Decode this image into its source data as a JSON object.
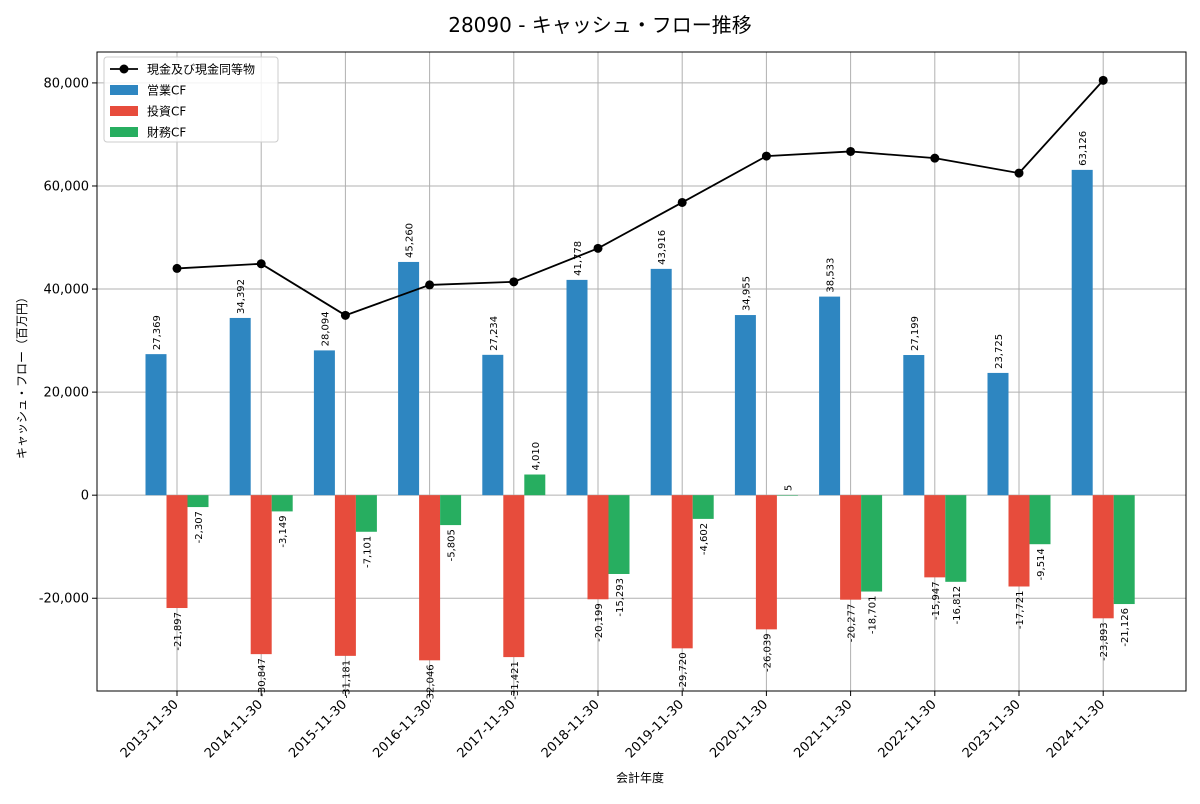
{
  "chart_data": {
    "type": "bar",
    "title": "28090 - キャッシュ・フロー推移",
    "xlabel": "会計年度",
    "ylabel": "キャッシュ・フロー（百万円）",
    "ylim": [
      -38000,
      86000
    ],
    "yticks": [
      -20000,
      0,
      20000,
      40000,
      60000,
      80000
    ],
    "ytick_labels": [
      "-20,000",
      "0",
      "20,000",
      "40,000",
      "60,000",
      "80,000"
    ],
    "grid": true,
    "legend_position": "top-left",
    "categories": [
      "2013-11-30",
      "2014-11-30",
      "2015-11-30",
      "2016-11-30",
      "2017-11-30",
      "2018-11-30",
      "2019-11-30",
      "2020-11-30",
      "2021-11-30",
      "2022-11-30",
      "2023-11-30",
      "2024-11-30"
    ],
    "series": [
      {
        "name": "営業CF",
        "kind": "bar",
        "color": "#2e86c1",
        "values": [
          27369,
          34392,
          28094,
          45260,
          27234,
          41778,
          43916,
          34955,
          38533,
          27199,
          23725,
          63126
        ],
        "labels": [
          "27,369",
          "34,392",
          "28,094",
          "45,260",
          "27,234",
          "41,778",
          "43,916",
          "34,955",
          "38,533",
          "27,199",
          "23,725",
          "63,126"
        ]
      },
      {
        "name": "投資CF",
        "kind": "bar",
        "color": "#e74c3c",
        "values": [
          -21897,
          -30847,
          -31181,
          -32046,
          -31421,
          -20199,
          -29720,
          -26039,
          -20277,
          -15947,
          -17721,
          -23893
        ],
        "labels": [
          "-21,897",
          "-30,847",
          "-31,181",
          "-32,046",
          "-31,421",
          "-20,199",
          "-29,720",
          "-26,039",
          "-20,277",
          "-15,947",
          "-17,721",
          "-23,893"
        ]
      },
      {
        "name": "財務CF",
        "kind": "bar",
        "color": "#27ae60",
        "values": [
          -2307,
          -3149,
          -7101,
          -5805,
          4010,
          -15293,
          -4602,
          5,
          -18701,
          -16812,
          -9514,
          -21126
        ],
        "labels": [
          "-2,307",
          "-3,149",
          "-7,101",
          "-5,805",
          "4,010",
          "-15,293",
          "-4,602",
          "5",
          "-18,701",
          "-16,812",
          "-9,514",
          "-21,126"
        ]
      },
      {
        "name": "現金及び現金同等物",
        "kind": "line",
        "color": "#000000",
        "values": [
          44000,
          44900,
          34900,
          40800,
          41400,
          47900,
          56800,
          65800,
          66700,
          65400,
          62500,
          80500
        ]
      }
    ]
  }
}
